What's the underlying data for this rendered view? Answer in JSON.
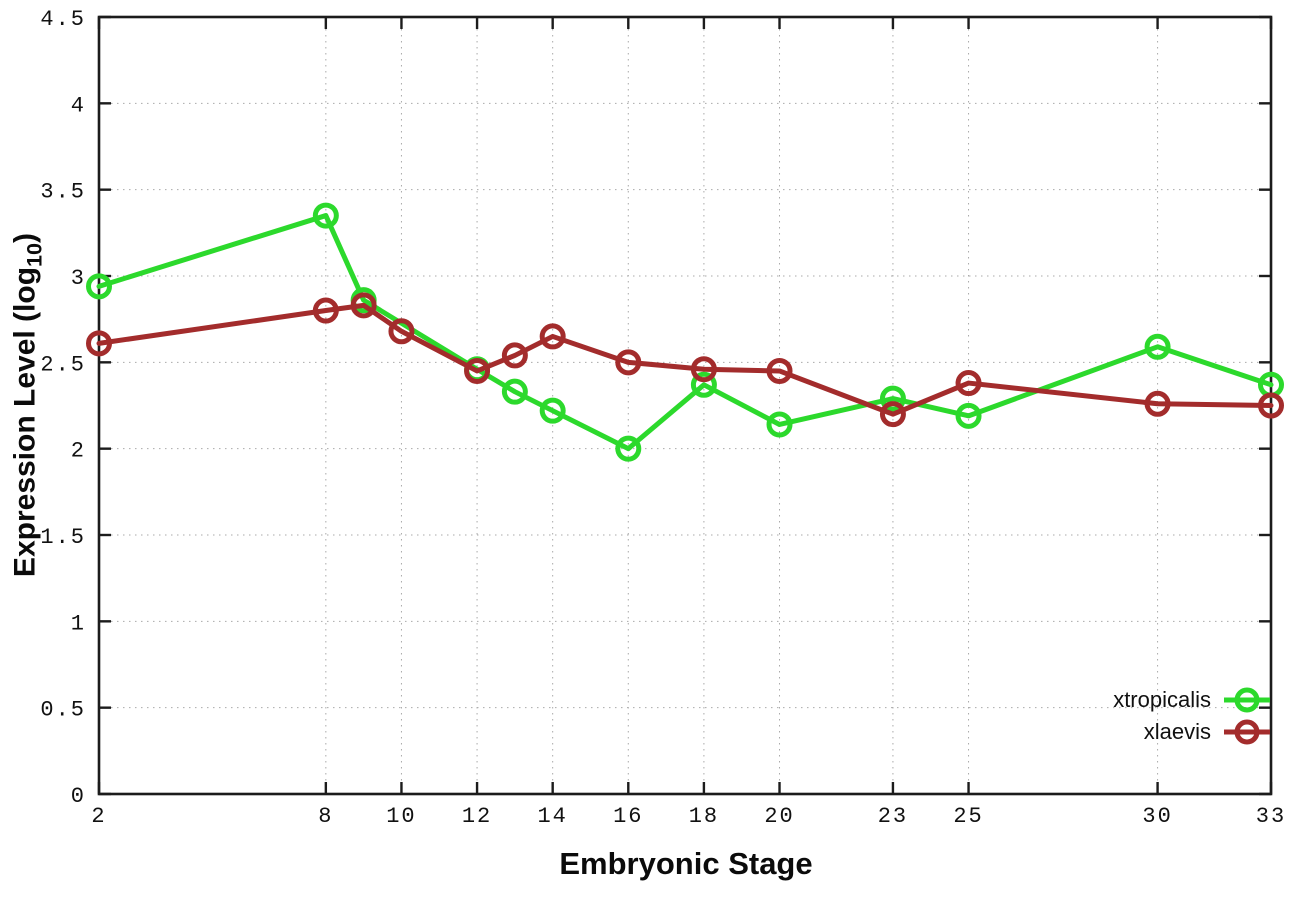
{
  "figure": {
    "xlabel": "Embryonic Stage",
    "ylabel_pre": "Expression Level (log",
    "ylabel_sub": "10",
    "ylabel_post": ")",
    "background": "#ffffff",
    "axis_color": "#1c1c1c",
    "grid_color": "#a9a9a9"
  },
  "chart_data": {
    "type": "line",
    "title": "",
    "xlabel": "Embryonic Stage",
    "ylabel": "Expression Level (log10)",
    "xlim": [
      2,
      33
    ],
    "ylim": [
      0,
      4.5
    ],
    "grid": true,
    "legend_position": "bottom-right-inside",
    "xticks": {
      "values": [
        2,
        8,
        10,
        12,
        14,
        16,
        18,
        20,
        23,
        25,
        30,
        33
      ],
      "labels": [
        "2",
        "8",
        "10",
        "12",
        "14",
        "16",
        "18",
        "20",
        "23",
        "25",
        "30",
        "33"
      ]
    },
    "yticks": {
      "values": [
        0,
        0.5,
        1,
        1.5,
        2,
        2.5,
        3,
        3.5,
        4,
        4.5
      ],
      "labels": [
        "0",
        "0.5",
        "1",
        "1.5",
        "2",
        "2.5",
        "3",
        "3.5",
        "4",
        "4.5"
      ]
    },
    "series": [
      {
        "name": "xtropicalis",
        "color": "#2cd92c",
        "marker": "open-circle",
        "line_width": 5,
        "x": [
          2,
          8,
          9,
          12,
          13,
          14,
          16,
          18,
          20,
          23,
          25,
          30,
          33
        ],
        "y": [
          2.94,
          3.35,
          2.86,
          2.46,
          2.33,
          2.22,
          2.0,
          2.37,
          2.14,
          2.29,
          2.19,
          2.59,
          2.37
        ]
      },
      {
        "name": "xlaevis",
        "color": "#a32c2c",
        "marker": "open-circle",
        "line_width": 5,
        "x": [
          2,
          8,
          9,
          10,
          12,
          13,
          14,
          16,
          18,
          20,
          23,
          25,
          30,
          33
        ],
        "y": [
          2.61,
          2.8,
          2.83,
          2.68,
          2.45,
          2.54,
          2.65,
          2.5,
          2.46,
          2.45,
          2.2,
          2.38,
          2.26,
          2.25
        ]
      }
    ]
  }
}
